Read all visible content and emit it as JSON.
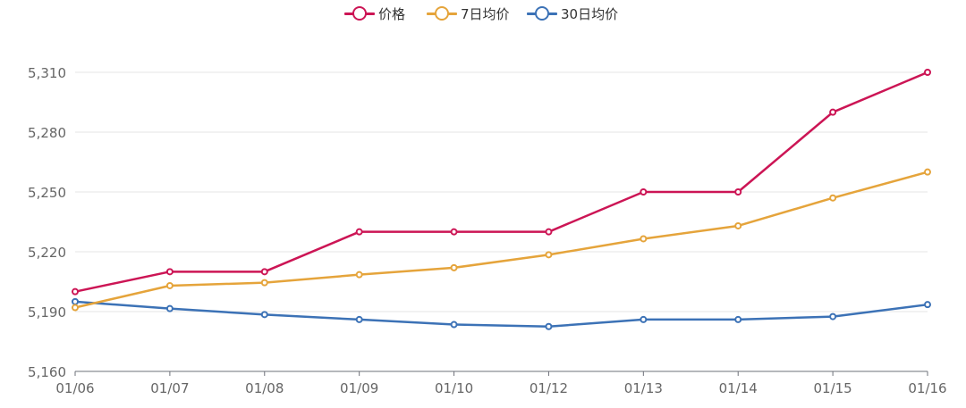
{
  "chart_data": {
    "type": "line",
    "categories": [
      "01/06",
      "01/07",
      "01/08",
      "01/09",
      "01/10",
      "01/12",
      "01/13",
      "01/14",
      "01/15",
      "01/16"
    ],
    "series": [
      {
        "name": "价格",
        "color": "#cc1555",
        "values": [
          5200,
          5210,
          5210,
          5230,
          5230,
          5230,
          5250,
          5250,
          5290,
          5310
        ]
      },
      {
        "name": "7日均价",
        "color": "#e5a43b",
        "values": [
          5192,
          5203,
          5204.5,
          5208.5,
          5212,
          5218.5,
          5226.5,
          5233,
          5247,
          5260
        ]
      },
      {
        "name": "30日均价",
        "color": "#3c72b6",
        "values": [
          5195,
          5191.5,
          5188.5,
          5186,
          5183.5,
          5182.5,
          5186,
          5186,
          5187.5,
          5193.5
        ]
      }
    ],
    "yticks": [
      "5,160",
      "5,190",
      "5,220",
      "5,250",
      "5,280",
      "5,310"
    ],
    "ylim": [
      5160,
      5310
    ],
    "grid": true,
    "legend_position": "top-center",
    "xlabel": "",
    "ylabel": ""
  }
}
